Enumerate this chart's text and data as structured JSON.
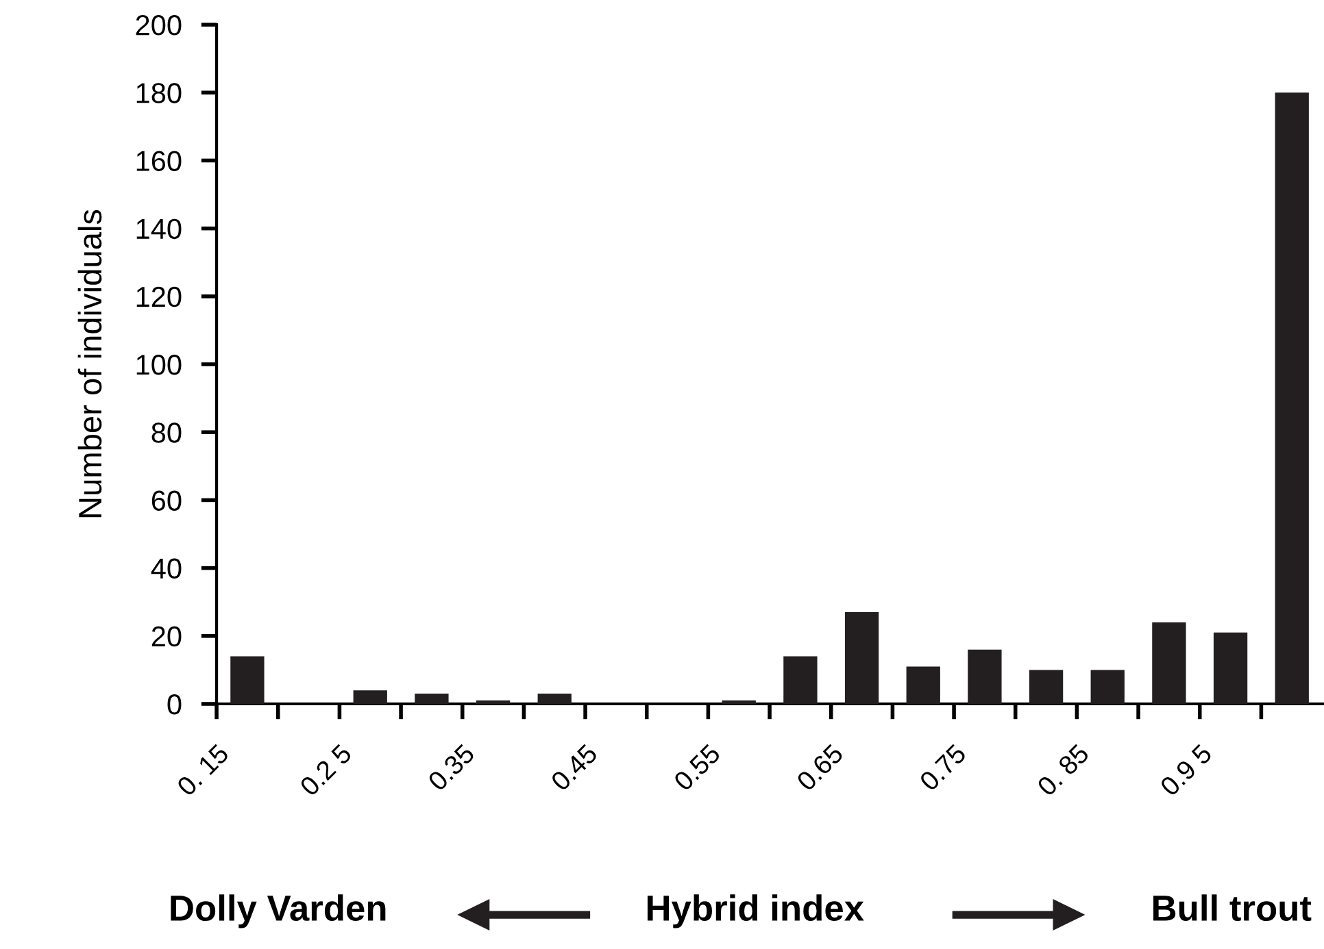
{
  "chart_data": {
    "type": "histogram",
    "xlabel": "Hybrid index",
    "ylabel": "Number of individuals",
    "annotations": [
      "Dolly Varden",
      "Bull trout"
    ],
    "bins": [
      0.15,
      0.2,
      0.25,
      0.3,
      0.35,
      0.4,
      0.45,
      0.5,
      0.55,
      0.6,
      0.65,
      0.7,
      0.75,
      0.8,
      0.85,
      0.9,
      0.95,
      1.0,
      1.05
    ],
    "values": [
      14,
      0,
      4,
      3,
      1,
      3,
      0,
      0,
      1,
      14,
      27,
      11,
      16,
      10,
      10,
      24,
      21,
      180
    ],
    "color": "#231f20",
    "xlim": [
      0.15,
      1.05
    ],
    "xticks": [
      {
        "value": 0.15,
        "label": "0. 15"
      },
      {
        "value": 0.2,
        "label": null
      },
      {
        "value": 0.25,
        "label": "0.2 5"
      },
      {
        "value": 0.3,
        "label": null
      },
      {
        "value": 0.35,
        "label": "0.35"
      },
      {
        "value": 0.4,
        "label": null
      },
      {
        "value": 0.45,
        "label": "0.45"
      },
      {
        "value": 0.5,
        "label": null
      },
      {
        "value": 0.55,
        "label": "0.55"
      },
      {
        "value": 0.6,
        "label": null
      },
      {
        "value": 0.65,
        "label": "0.65"
      },
      {
        "value": 0.7,
        "label": null
      },
      {
        "value": 0.75,
        "label": "0.75"
      },
      {
        "value": 0.8,
        "label": null
      },
      {
        "value": 0.85,
        "label": "0. 85"
      },
      {
        "value": 0.9,
        "label": null
      },
      {
        "value": 0.95,
        "label": "0.9 5"
      },
      {
        "value": 1.0,
        "label": null
      }
    ],
    "ylim": [
      0,
      200
    ],
    "yticks": [
      0,
      20,
      40,
      60,
      80,
      100,
      120,
      140,
      160,
      180,
      200
    ],
    "grid": false,
    "legend": false
  }
}
